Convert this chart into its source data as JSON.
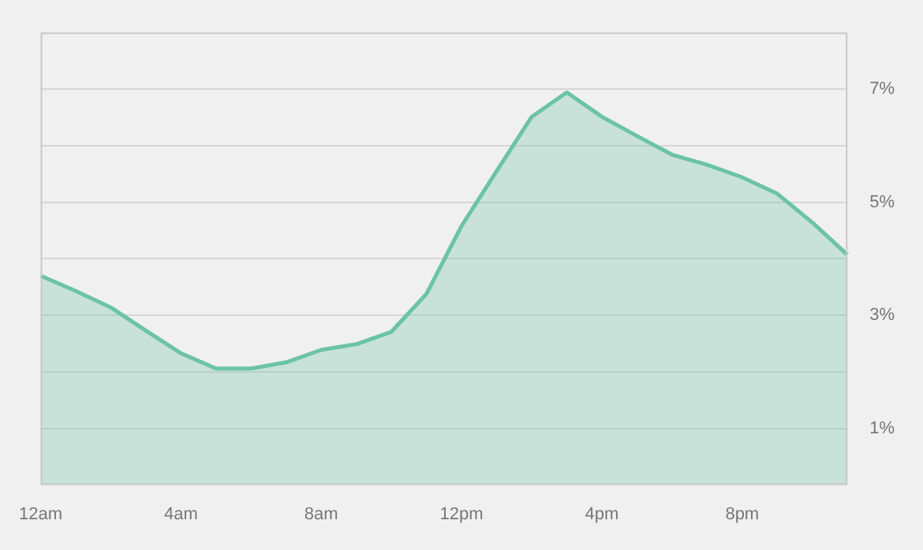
{
  "chart_data": {
    "type": "area",
    "categories": [
      "12am",
      null,
      null,
      null,
      "4am",
      null,
      null,
      null,
      "8am",
      null,
      null,
      null,
      "12pm",
      null,
      null,
      null,
      "4pm",
      null,
      null,
      null,
      "8pm",
      null,
      null,
      null
    ],
    "series": [
      {
        "color": "#6cc3a6",
        "values": [
          3.7,
          3.43,
          3.14,
          2.73,
          2.33,
          2.06,
          2.06,
          2.17,
          2.39,
          2.49,
          2.71,
          3.38,
          4.58,
          5.55,
          6.51,
          6.94,
          6.51,
          6.17,
          5.84,
          5.66,
          5.44,
          5.15,
          4.64,
          4.07
        ]
      }
    ],
    "ylim": [
      0,
      8
    ],
    "yticks": [
      {
        "value": 1,
        "label": "1%"
      },
      {
        "value": 2,
        "label": null
      },
      {
        "value": 3,
        "label": "3%"
      },
      {
        "value": 4,
        "label": null
      },
      {
        "value": 5,
        "label": "5%"
      },
      {
        "value": 6,
        "label": null
      },
      {
        "value": 7,
        "label": "7%"
      }
    ],
    "grid": "y",
    "legend": false,
    "marker": "none",
    "line_style": "solid"
  }
}
